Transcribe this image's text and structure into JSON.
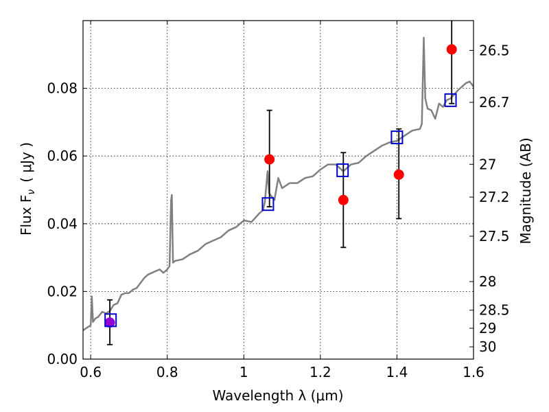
{
  "chart_data": {
    "type": "scatter",
    "title": "",
    "xlabel": "Wavelength  λ (μm)",
    "ylabel": "Flux  F",
    "ylabel_sub": "ν",
    "ylabel_unit": "( μJy )",
    "ylabel_right": "Magnitude (AB)",
    "xlim": [
      0.58,
      1.6
    ],
    "ylim": [
      0.0,
      0.1
    ],
    "x_ticks": [
      {
        "value": 0.6,
        "label": "0.6"
      },
      {
        "value": 0.8,
        "label": "0.8"
      },
      {
        "value": 1.0,
        "label": "1"
      },
      {
        "value": 1.2,
        "label": "1.2"
      },
      {
        "value": 1.4,
        "label": "1.4"
      },
      {
        "value": 1.6,
        "label": "1.6"
      }
    ],
    "y_ticks": [
      {
        "value": 0.0,
        "label": "0.00"
      },
      {
        "value": 0.02,
        "label": "0.02"
      },
      {
        "value": 0.04,
        "label": "0.04"
      },
      {
        "value": 0.06,
        "label": "0.06"
      },
      {
        "value": 0.08,
        "label": "0.08"
      }
    ],
    "right_ticks": [
      {
        "mag": 26.5,
        "label": "26.5"
      },
      {
        "mag": 26.7,
        "label": "26.7"
      },
      {
        "mag": 27.0,
        "label": "27"
      },
      {
        "mag": 27.2,
        "label": "27.2"
      },
      {
        "mag": 27.5,
        "label": "27.5"
      },
      {
        "mag": 28.0,
        "label": "28"
      },
      {
        "mag": 28.5,
        "label": "28.5"
      },
      {
        "mag": 29.0,
        "label": "29"
      },
      {
        "mag": 30.0,
        "label": "30"
      }
    ],
    "grid": true,
    "colors": {
      "model": "#808080",
      "observed": "#ff0000",
      "observed_first": "#9400d3",
      "model_box": "#0000cd",
      "errorbar": "#000000"
    },
    "model_spectrum": [
      [
        0.58,
        0.0085
      ],
      [
        0.593,
        0.0095
      ],
      [
        0.6,
        0.01
      ],
      [
        0.603,
        0.0185
      ],
      [
        0.606,
        0.011
      ],
      [
        0.612,
        0.012
      ],
      [
        0.62,
        0.0125
      ],
      [
        0.63,
        0.014
      ],
      [
        0.64,
        0.0135
      ],
      [
        0.65,
        0.0142
      ],
      [
        0.66,
        0.016
      ],
      [
        0.67,
        0.0165
      ],
      [
        0.68,
        0.019
      ],
      [
        0.69,
        0.0195
      ],
      [
        0.7,
        0.0195
      ],
      [
        0.71,
        0.0205
      ],
      [
        0.72,
        0.021
      ],
      [
        0.73,
        0.0225
      ],
      [
        0.74,
        0.024
      ],
      [
        0.75,
        0.025
      ],
      [
        0.76,
        0.0255
      ],
      [
        0.77,
        0.026
      ],
      [
        0.78,
        0.0265
      ],
      [
        0.79,
        0.0255
      ],
      [
        0.8,
        0.0265
      ],
      [
        0.806,
        0.0275
      ],
      [
        0.81,
        0.047
      ],
      [
        0.812,
        0.0485
      ],
      [
        0.815,
        0.0285
      ],
      [
        0.82,
        0.029
      ],
      [
        0.84,
        0.0295
      ],
      [
        0.86,
        0.031
      ],
      [
        0.88,
        0.032
      ],
      [
        0.9,
        0.034
      ],
      [
        0.92,
        0.035
      ],
      [
        0.94,
        0.036
      ],
      [
        0.96,
        0.038
      ],
      [
        0.98,
        0.039
      ],
      [
        1.0,
        0.041
      ],
      [
        1.02,
        0.0405
      ],
      [
        1.04,
        0.043
      ],
      [
        1.05,
        0.044
      ],
      [
        1.055,
        0.0465
      ],
      [
        1.062,
        0.0555
      ],
      [
        1.066,
        0.049
      ],
      [
        1.08,
        0.047
      ],
      [
        1.09,
        0.0535
      ],
      [
        1.1,
        0.0505
      ],
      [
        1.12,
        0.052
      ],
      [
        1.14,
        0.052
      ],
      [
        1.16,
        0.0535
      ],
      [
        1.18,
        0.054
      ],
      [
        1.2,
        0.056
      ],
      [
        1.22,
        0.0575
      ],
      [
        1.24,
        0.0575
      ],
      [
        1.26,
        0.0555
      ],
      [
        1.28,
        0.0575
      ],
      [
        1.3,
        0.058
      ],
      [
        1.32,
        0.06
      ],
      [
        1.34,
        0.0615
      ],
      [
        1.36,
        0.063
      ],
      [
        1.38,
        0.064
      ],
      [
        1.4,
        0.0645
      ],
      [
        1.42,
        0.066
      ],
      [
        1.44,
        0.0675
      ],
      [
        1.46,
        0.068
      ],
      [
        1.465,
        0.0695
      ],
      [
        1.47,
        0.095
      ],
      [
        1.474,
        0.077
      ],
      [
        1.48,
        0.074
      ],
      [
        1.49,
        0.0735
      ],
      [
        1.5,
        0.071
      ],
      [
        1.51,
        0.0755
      ],
      [
        1.52,
        0.0745
      ],
      [
        1.53,
        0.0765
      ],
      [
        1.54,
        0.077
      ],
      [
        1.56,
        0.0795
      ],
      [
        1.57,
        0.0805
      ],
      [
        1.58,
        0.0815
      ],
      [
        1.59,
        0.082
      ],
      [
        1.6,
        0.0805
      ]
    ],
    "series": [
      {
        "marker": "circle",
        "points": [
          {
            "x": 0.65,
            "y": 0.0108,
            "err_low": 0.0043,
            "err_high": 0.0175
          },
          {
            "x": 1.067,
            "y": 0.059,
            "err_low": 0.045,
            "err_high": 0.0735
          },
          {
            "x": 1.26,
            "y": 0.047,
            "err_low": 0.033,
            "err_high": 0.061
          },
          {
            "x": 1.405,
            "y": 0.0545,
            "err_low": 0.0415,
            "err_high": 0.068
          },
          {
            "x": 1.543,
            "y": 0.0915,
            "err_low": 0.0755,
            "err_high": 0.1
          }
        ]
      },
      {
        "marker": "square",
        "points": [
          {
            "x": 0.652,
            "y": 0.0115
          },
          {
            "x": 1.063,
            "y": 0.0458
          },
          {
            "x": 1.258,
            "y": 0.0558
          },
          {
            "x": 1.4,
            "y": 0.0655
          },
          {
            "x": 1.54,
            "y": 0.0765
          }
        ]
      }
    ]
  }
}
